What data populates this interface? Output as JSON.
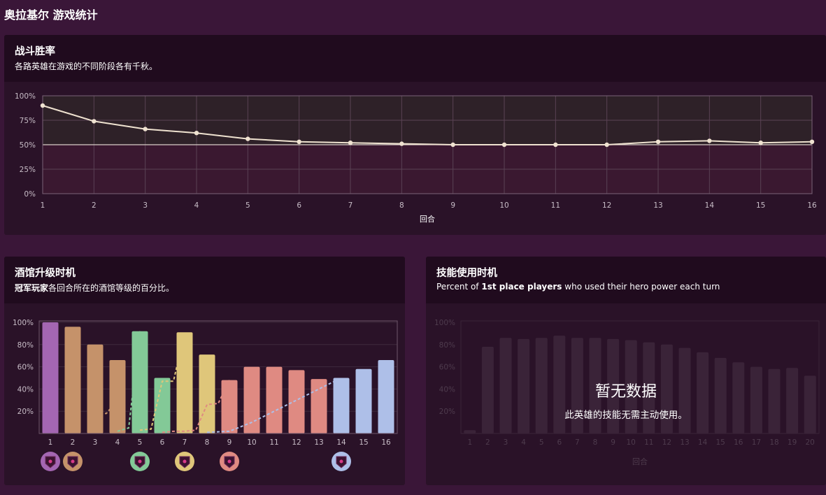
{
  "page": {
    "title": "奥拉基尔 游戏统计"
  },
  "colors": {
    "line": "#efe2d0",
    "win_area_top": "#2e2128",
    "win_area_bottom": "#3a1830",
    "purple": "#a466b2",
    "tan": "#c5926a",
    "green": "#83c997",
    "yellow": "#dfc67a",
    "salmon": "#df8a82",
    "blue": "#aebfe8"
  },
  "winrate_panel": {
    "title": "战斗胜率",
    "subtitle": "各路英雄在游戏的不同阶段各有千秋。"
  },
  "tavern_panel": {
    "title": "酒馆升级时机",
    "subtitle_bold": "冠军玩家",
    "subtitle_rest": "各回合所在的酒馆等级的百分比。"
  },
  "power_panel": {
    "title": "技能使用时机",
    "subtitle_pre": "Percent of ",
    "subtitle_bold": "1st place players",
    "subtitle_post": " who used their hero power each turn",
    "empty_title": "暂无数据",
    "empty_message": "此英雄的技能无需主动使用。"
  },
  "chart_data": [
    {
      "type": "line",
      "title": "战斗胜率",
      "xlabel": "回合",
      "ylabel": "",
      "x": [
        1,
        2,
        3,
        4,
        5,
        6,
        7,
        8,
        9,
        10,
        11,
        12,
        13,
        14,
        15,
        16
      ],
      "values": [
        90,
        74,
        66,
        62,
        56,
        53,
        52,
        51,
        50,
        50,
        50,
        50,
        53,
        54,
        52,
        53
      ],
      "ylim": [
        0,
        100
      ],
      "yticks": [
        "0%",
        "25%",
        "50%",
        "75%",
        "100%"
      ],
      "grid": true,
      "reference_line": 50
    },
    {
      "type": "bar",
      "title": "酒馆升级时机",
      "categories": [
        "1",
        "2",
        "3",
        "4",
        "5",
        "6",
        "7",
        "8",
        "9",
        "10",
        "11",
        "12",
        "13",
        "14",
        "15",
        "16"
      ],
      "values": [
        100,
        96,
        80,
        66,
        92,
        50,
        91,
        71,
        48,
        60,
        60,
        57,
        49,
        50,
        58,
        66
      ],
      "bar_colors": [
        "purple",
        "tan",
        "tan",
        "tan",
        "green",
        "green",
        "yellow",
        "yellow",
        "salmon",
        "salmon",
        "salmon",
        "salmon",
        "salmon",
        "blue",
        "blue",
        "blue"
      ],
      "yticks": [
        "20%",
        "40%",
        "60%",
        "80%",
        "100%"
      ],
      "ylim": [
        0,
        100
      ],
      "series": [
        {
          "color": "tan",
          "x": [
            3,
            3.5,
            4
          ],
          "values": [
            18,
            18,
            30
          ]
        },
        {
          "color": "green",
          "x": [
            4,
            4.5,
            5
          ],
          "values": [
            2,
            5,
            92
          ]
        },
        {
          "color": "yellow",
          "x": [
            5,
            5.5,
            6,
            6.5,
            7
          ],
          "values": [
            3,
            4,
            47,
            47,
            91
          ]
        },
        {
          "color": "salmon",
          "x": [
            6,
            6.5,
            7,
            7.5,
            8,
            8.5,
            9
          ],
          "values": [
            1,
            2,
            2,
            3,
            26,
            27,
            48
          ]
        },
        {
          "color": "blue",
          "x": [
            8,
            9,
            10,
            11,
            12,
            13,
            14
          ],
          "values": [
            1,
            2,
            10,
            20,
            30,
            40,
            50
          ]
        }
      ],
      "markers": [
        {
          "turn": 1,
          "color": "purple",
          "icon": "tavern-tier-icon"
        },
        {
          "turn": 2,
          "color": "tan",
          "icon": "tavern-tier-icon"
        },
        {
          "turn": 5,
          "color": "green",
          "icon": "tavern-tier-icon"
        },
        {
          "turn": 7,
          "color": "yellow",
          "icon": "tavern-tier-icon"
        },
        {
          "turn": 9,
          "color": "salmon",
          "icon": "tavern-tier-icon"
        },
        {
          "turn": 14,
          "color": "blue",
          "icon": "tavern-tier-icon"
        }
      ]
    },
    {
      "type": "bar",
      "title": "技能使用时机",
      "xlabel": "回合",
      "categories": [
        "1",
        "2",
        "3",
        "4",
        "5",
        "6",
        "7",
        "8",
        "9",
        "10",
        "11",
        "12",
        "13",
        "14",
        "15",
        "16",
        "17",
        "18",
        "19",
        "20"
      ],
      "values": [
        3,
        78,
        86,
        85,
        86,
        88,
        86,
        86,
        85,
        84,
        82,
        80,
        77,
        73,
        68,
        64,
        60,
        58,
        59,
        52
      ],
      "yticks": [
        "20%",
        "40%",
        "60%",
        "80%",
        "100%"
      ],
      "ylim": [
        0,
        100
      ],
      "state": "placeholder"
    }
  ]
}
